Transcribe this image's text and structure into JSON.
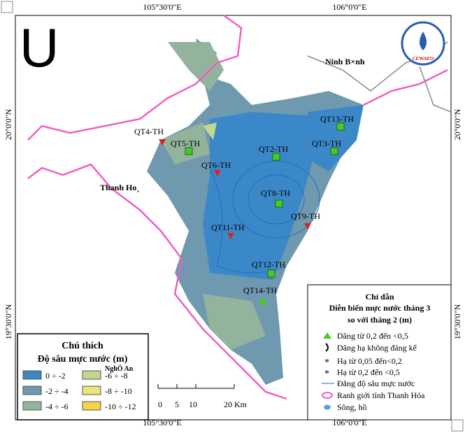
{
  "map": {
    "north_letter": "U",
    "coords": {
      "top": [
        "105°30'0\"E",
        "106°0'0\"E"
      ],
      "bottom": [
        "105°30'0\"E",
        "106°0'0\"E"
      ],
      "left": [
        "20°0'0\"N",
        "19°30'0\"N"
      ],
      "right": [
        "20°0'0\"N",
        "19°30'0\"N"
      ]
    },
    "places": [
      "Ninh B×nh",
      "Thanh Ho¸",
      "NghÖ An"
    ],
    "stations": [
      "QT4-TH",
      "QT5-TH",
      "QT6-TH",
      "QT2-TH",
      "QT13-TH",
      "QT3-TH",
      "QT8-TH",
      "QT9-TH",
      "QT11-TH",
      "QT12-TH",
      "QT14-TH"
    ],
    "logo": "CEWAFO",
    "legend": {
      "title": "Chú thích",
      "subtitle": "Độ sâu mực nước (m)",
      "items": [
        {
          "label": "0 ÷ -2",
          "color": "#3b88c8"
        },
        {
          "label": "-6 ÷ -8",
          "color": "#c4d68c"
        },
        {
          "label": "-2 ÷ -4",
          "color": "#6f99ae"
        },
        {
          "label": "-8 ÷ -10",
          "color": "#e9e47c"
        },
        {
          "label": "-4 ÷ -6",
          "color": "#93b39c"
        },
        {
          "label": "-10 ÷ -12",
          "color": "#f4d548"
        }
      ]
    },
    "guide": {
      "title": "Chỉ dẫn",
      "lines": [
        "Diễn biến mực nước tháng 3",
        "so với tháng 2 (m)"
      ],
      "items": [
        "Dâng từ 0,2 đến <0,5",
        "Dâng hạ không đáng kể",
        "Hạ từ 0,05 đến<0,2",
        "Hạ từ 0,2 đến <0,5",
        "Đẳng độ sâu mực nước",
        "Ranh giới tỉnh Thanh Hóa",
        "Sông, hồ"
      ]
    },
    "scale": [
      "0",
      "5",
      "10",
      "20 Km"
    ]
  }
}
